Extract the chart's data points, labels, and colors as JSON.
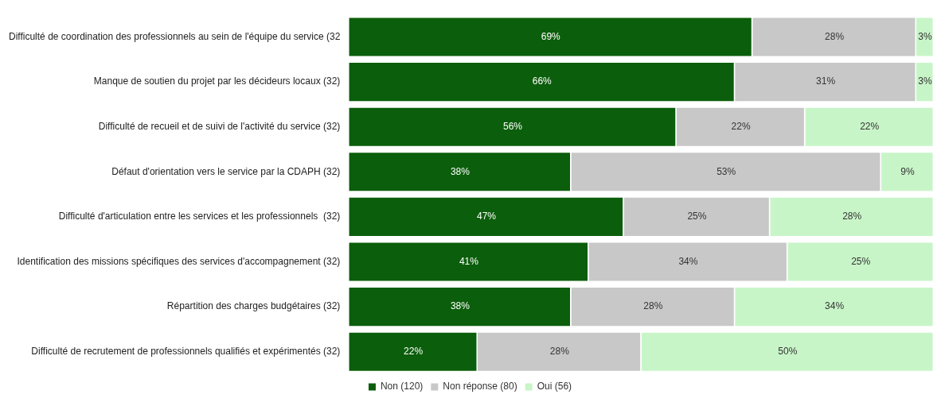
{
  "chart_data": {
    "type": "bar",
    "orientation": "horizontal",
    "stacked": true,
    "legend": "bottom",
    "grid": false,
    "tick_labels": "y",
    "categories": [
      "Difficulté de coordination des professionnels au sein de l'équipe du service (32",
      "Manque de soutien du projet par les décideurs locaux (32)",
      "Difficulté de recueil et de suivi de l'activité du service (32)",
      "Défaut d'orientation vers le service par la CDAPH (32)",
      "Difficulté d'articulation entre les services et les professionnels  (32)",
      "Identification des missions spécifiques des services d'accompagnement (32)",
      "Répartition des charges budgétaires (32)",
      "Difficulté de recrutement de professionnels qualifiés et expérimentés (32)"
    ],
    "series": [
      {
        "name": "Non (120)",
        "color": "#0b5e0b",
        "values": [
          69,
          66,
          56,
          38,
          47,
          41,
          38,
          22
        ],
        "value_labels": [
          "69%",
          "66%",
          "56%",
          "38%",
          "47%",
          "41%",
          "38%",
          "22%"
        ]
      },
      {
        "name": "Non réponse (80)",
        "color": "#c8c8c8",
        "values": [
          28,
          31,
          22,
          53,
          25,
          34,
          28,
          28
        ],
        "value_labels": [
          "28%",
          "31%",
          "22%",
          "53%",
          "25%",
          "34%",
          "28%",
          "28%"
        ]
      },
      {
        "name": "Oui (56)",
        "color": "#c8f5c8",
        "values": [
          3,
          3,
          22,
          9,
          28,
          25,
          34,
          50
        ],
        "value_labels": [
          "3%",
          "3%",
          "22%",
          "9%",
          "28%",
          "25%",
          "34%",
          "50%"
        ]
      }
    ]
  }
}
